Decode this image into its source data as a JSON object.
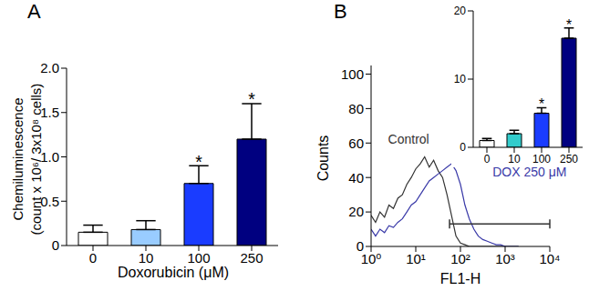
{
  "chart_data": [
    {
      "panel": "A",
      "type": "bar",
      "categories": [
        "0",
        "10",
        "100",
        "250"
      ],
      "values": [
        0.15,
        0.18,
        0.7,
        1.2
      ],
      "errors": [
        0.08,
        0.1,
        0.2,
        0.4
      ],
      "colors": [
        "#ffffff",
        "#99ccff",
        "#1a3cff",
        "#000080"
      ],
      "ylim": [
        0,
        2
      ],
      "yticks": [
        0,
        0.5,
        {
          "value": 1,
          "label": "1.0"
        },
        1.5,
        {
          "value": 2,
          "label": "2.0"
        }
      ],
      "xlabel": "Doxorubicin (μM)",
      "ylabel": [
        "Chemiluminescence",
        "(count x 10⁶/ 3x10⁸ cells)"
      ],
      "annotations": [
        {
          "category": "100",
          "text": "*"
        },
        {
          "category": "250",
          "text": "*"
        }
      ]
    },
    {
      "panel": "B",
      "type": "line",
      "log": "x",
      "xlim": [
        1,
        10000
      ],
      "xticks": [
        {
          "value": 1,
          "label": "10⁰"
        },
        {
          "value": 10,
          "label": "10¹"
        },
        {
          "value": 100,
          "label": "10²"
        },
        {
          "value": 1000,
          "label": "10³"
        },
        {
          "value": 10000,
          "label": "10⁴"
        }
      ],
      "ylim": [
        0,
        105
      ],
      "yticks": [
        0,
        20,
        40,
        60,
        80,
        100
      ],
      "xlabel": "FL1-H",
      "ylabel": "Counts",
      "x": [
        1,
        1.26,
        1.58,
        2,
        2.51,
        3.16,
        3.98,
        5.01,
        6.31,
        7.94,
        10,
        12.6,
        15.8,
        20,
        25.1,
        31.6,
        39.8,
        50.1,
        63.1,
        79.4,
        100,
        126,
        158,
        200,
        251,
        316,
        398,
        501,
        631,
        794,
        1000,
        1259,
        1585,
        1995
      ],
      "series": [
        {
          "name": "Control",
          "color": "#333333",
          "values": [
            18,
            14,
            20,
            17,
            24,
            22,
            28,
            30,
            36,
            40,
            45,
            48,
            52,
            46,
            50,
            44,
            40,
            30,
            18,
            6,
            2,
            1,
            0,
            0,
            0,
            0,
            0,
            0,
            0,
            0,
            0,
            0,
            0,
            0
          ]
        },
        {
          "name": "DOX 250 μM",
          "color": "#3a3aa8",
          "values": [
            10,
            6,
            10,
            8,
            12,
            11,
            14,
            16,
            20,
            24,
            26,
            30,
            34,
            38,
            40,
            42,
            44,
            46,
            48,
            44,
            36,
            24,
            16,
            10,
            6,
            4,
            3,
            2,
            1,
            1,
            0,
            0,
            0,
            0
          ]
        }
      ],
      "gate": {
        "x": [
          57,
          10000
        ],
        "y": 13
      }
    },
    {
      "type": "bar",
      "categories": [
        "0",
        "10",
        "100",
        "250"
      ],
      "values": [
        1,
        2,
        5,
        16
      ],
      "errors": [
        0.3,
        0.5,
        0.8,
        1.5
      ],
      "colors": [
        "#ffffff",
        "#33cccc",
        "#1a3cff",
        "#000080"
      ],
      "ylim": [
        0,
        20
      ],
      "yticks": [
        0,
        10,
        20
      ],
      "annotations": [
        {
          "category": "100",
          "text": "*"
        },
        {
          "category": "250",
          "text": "*"
        }
      ]
    }
  ]
}
